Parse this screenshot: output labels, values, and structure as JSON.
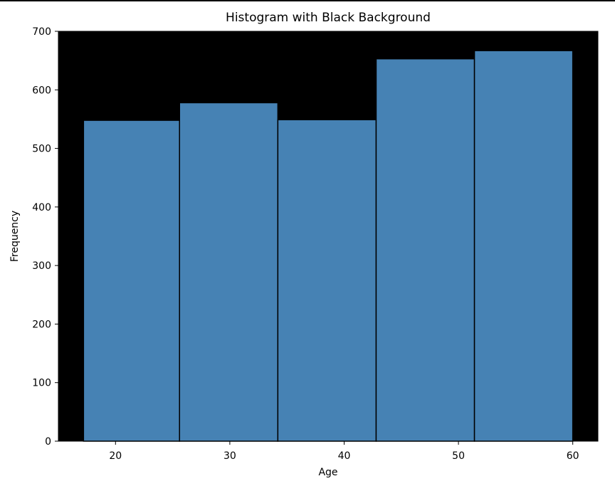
{
  "chart_data": {
    "type": "bar",
    "title": "Histogram with Black Background",
    "xlabel": "Age",
    "ylabel": "Frequency",
    "xlim": [
      15,
      62.2
    ],
    "ylim": [
      0,
      700
    ],
    "x_ticks": [
      20,
      30,
      40,
      50,
      60
    ],
    "y_ticks": [
      0,
      100,
      200,
      300,
      400,
      500,
      600,
      700
    ],
    "bins": [
      {
        "x0": 17.2,
        "x1": 25.6,
        "value": 548
      },
      {
        "x0": 25.6,
        "x1": 34.2,
        "value": 578
      },
      {
        "x0": 34.2,
        "x1": 42.8,
        "value": 549
      },
      {
        "x0": 42.8,
        "x1": 51.4,
        "value": 653
      },
      {
        "x0": 51.4,
        "x1": 60.0,
        "value": 667
      }
    ],
    "grid": false,
    "colors": {
      "bar": "#4682b4",
      "bar_edge": "#000000",
      "plot_background": "#000000",
      "figure_background": "#ffffff"
    }
  }
}
